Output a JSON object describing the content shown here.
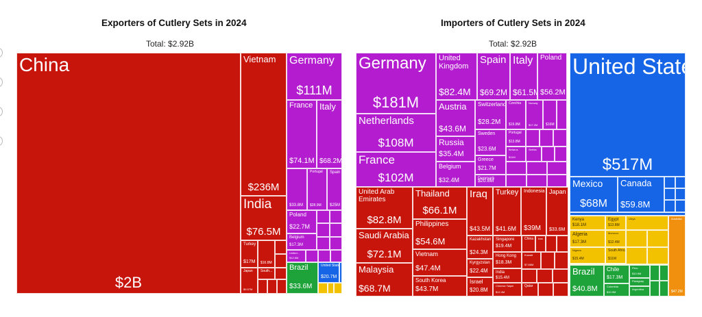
{
  "chart_data": [
    {
      "type": "treemap",
      "title": "Exporters of Cutlery Sets in 2024",
      "subtitle": "Total: $2.92B",
      "colors": {
        "asia": "#c8150c",
        "europe": "#b41cd0",
        "south_america": "#1ea33a",
        "north_america": "#1565e6",
        "africa": "#f2c200"
      },
      "items": [
        {
          "name": "China",
          "label": "$2B",
          "value": 2000,
          "region": "asia"
        },
        {
          "name": "Vietnam",
          "label": "$236M",
          "value": 236,
          "region": "asia"
        },
        {
          "name": "India",
          "label": "$76.5M",
          "value": 76.5,
          "region": "asia"
        },
        {
          "name": "Turkey",
          "label": "$17M",
          "value": 17,
          "region": "asia"
        },
        {
          "name": "",
          "label": "$16.8M",
          "value": 16.8,
          "region": "asia"
        },
        {
          "name": "Japan",
          "label": "$9.57M",
          "value": 9.57,
          "region": "asia"
        },
        {
          "name": "South...",
          "label": "",
          "value": 8,
          "region": "asia"
        },
        {
          "name": "Germany",
          "label": "$111M",
          "value": 111,
          "region": "europe"
        },
        {
          "name": "France",
          "label": "$74.1M",
          "value": 74.1,
          "region": "europe"
        },
        {
          "name": "Italy",
          "label": "$68.2M",
          "value": 68.2,
          "region": "europe"
        },
        {
          "name": "",
          "label": "$33.8M",
          "value": 33.8,
          "region": "europe"
        },
        {
          "name": "Portugal",
          "label": "$28.9M",
          "value": 28.9,
          "region": "europe"
        },
        {
          "name": "Spain",
          "label": "$25M",
          "value": 25,
          "region": "europe"
        },
        {
          "name": "Poland",
          "label": "$22.7M",
          "value": 22.7,
          "region": "europe"
        },
        {
          "name": "Belgium",
          "label": "$17.3M",
          "value": 17.3,
          "region": "europe"
        },
        {
          "name": "United...",
          "label": "$12.6M",
          "value": 12.6,
          "region": "europe"
        },
        {
          "name": "Brazil",
          "label": "$33.6M",
          "value": 33.6,
          "region": "south_america"
        },
        {
          "name": "United States",
          "label": "$20.7M",
          "value": 20.7,
          "region": "north_america"
        }
      ]
    },
    {
      "type": "treemap",
      "title": "Importers of Cutlery Sets in 2024",
      "subtitle": "Total: $2.92B",
      "colors": {
        "asia": "#c8150c",
        "europe": "#b41cd0",
        "south_america": "#1ea33a",
        "north_america": "#1565e6",
        "africa": "#f2c200",
        "oceania": "#f0900e"
      },
      "items": [
        {
          "name": "Germany",
          "label": "$181M",
          "value": 181,
          "region": "europe"
        },
        {
          "name": "United Kingdom",
          "label": "$82.4M",
          "value": 82.4,
          "region": "europe"
        },
        {
          "name": "Spain",
          "label": "$69.2M",
          "value": 69.2,
          "region": "europe"
        },
        {
          "name": "Italy",
          "label": "$61.5M",
          "value": 61.5,
          "region": "europe"
        },
        {
          "name": "Poland",
          "label": "$56.2M",
          "value": 56.2,
          "region": "europe"
        },
        {
          "name": "Netherlands",
          "label": "$108M",
          "value": 108,
          "region": "europe"
        },
        {
          "name": "Austria",
          "label": "$43.6M",
          "value": 43.6,
          "region": "europe"
        },
        {
          "name": "Switzerland",
          "label": "$28.2M",
          "value": 28.2,
          "region": "europe"
        },
        {
          "name": "Czechia",
          "label": "$19.8M",
          "value": 19.8,
          "region": "europe"
        },
        {
          "name": "Norway",
          "label": "$17.2M",
          "value": 17.2,
          "region": "europe"
        },
        {
          "name": "",
          "label": "$16M",
          "value": 16,
          "region": "europe"
        },
        {
          "name": "Sweden",
          "label": "$23.6M",
          "value": 23.6,
          "region": "europe"
        },
        {
          "name": "Portugal",
          "label": "$13.8M",
          "value": 13.8,
          "region": "europe"
        },
        {
          "name": "Belarus",
          "label": "$11M",
          "value": 11,
          "region": "europe"
        },
        {
          "name": "Serbia",
          "label": "",
          "value": 10,
          "region": "europe"
        },
        {
          "name": "Russia",
          "label": "$35.4M",
          "value": 35.4,
          "region": "europe"
        },
        {
          "name": "Greece",
          "label": "$21.7M",
          "value": 21.7,
          "region": "europe"
        },
        {
          "name": "France",
          "label": "$102M",
          "value": 102,
          "region": "europe"
        },
        {
          "name": "Belgium",
          "label": "$32.4M",
          "value": 32.4,
          "region": "europe"
        },
        {
          "name": "Denmark",
          "label": "$20.8M",
          "value": 20.8,
          "region": "europe"
        },
        {
          "name": "United Arab Emirates",
          "label": "$82.8M",
          "value": 82.8,
          "region": "asia"
        },
        {
          "name": "Saudi Arabia",
          "label": "$72.1M",
          "value": 72.1,
          "region": "asia"
        },
        {
          "name": "Malaysia",
          "label": "$68.7M",
          "value": 68.7,
          "region": "asia"
        },
        {
          "name": "Thailand",
          "label": "$66.1M",
          "value": 66.1,
          "region": "asia"
        },
        {
          "name": "Philippines",
          "label": "$54.6M",
          "value": 54.6,
          "region": "asia"
        },
        {
          "name": "Vietnam",
          "label": "$47.4M",
          "value": 47.4,
          "region": "asia"
        },
        {
          "name": "South Korea",
          "label": "$43.7M",
          "value": 43.7,
          "region": "asia"
        },
        {
          "name": "Iraq",
          "label": "$43.5M",
          "value": 43.5,
          "region": "asia"
        },
        {
          "name": "Turkey",
          "label": "$41.6M",
          "value": 41.6,
          "region": "asia"
        },
        {
          "name": "Indonesia",
          "label": "$39M",
          "value": 39,
          "region": "asia"
        },
        {
          "name": "Japan",
          "label": "$33.6M",
          "value": 33.6,
          "region": "asia"
        },
        {
          "name": "Kazakhstan",
          "label": "$24.3M",
          "value": 24.3,
          "region": "asia"
        },
        {
          "name": "Singapore",
          "label": "$19.4M",
          "value": 19.4,
          "region": "asia"
        },
        {
          "name": "China",
          "label": "",
          "value": 15,
          "region": "asia"
        },
        {
          "name": "Iran",
          "label": "",
          "value": 14,
          "region": "asia"
        },
        {
          "name": "Kyrgyzstan",
          "label": "$22.4M",
          "value": 22.4,
          "region": "asia"
        },
        {
          "name": "Hong Kong",
          "label": "$18.3M",
          "value": 18.3,
          "region": "asia"
        },
        {
          "name": "Kuwait",
          "label": "$7.66M",
          "value": 7.66,
          "region": "asia"
        },
        {
          "name": "India",
          "label": "$15.4M",
          "value": 15.4,
          "region": "asia"
        },
        {
          "name": "Israel",
          "label": "$20.8M",
          "value": 20.8,
          "region": "asia"
        },
        {
          "name": "Chinese Taipei",
          "label": "$12.4M",
          "value": 12.4,
          "region": "asia"
        },
        {
          "name": "Qatar",
          "label": "",
          "value": 9,
          "region": "asia"
        },
        {
          "name": "United States",
          "label": "$517M",
          "value": 517,
          "region": "north_america"
        },
        {
          "name": "Mexico",
          "label": "$68M",
          "value": 68,
          "region": "north_america"
        },
        {
          "name": "Canada",
          "label": "$59.8M",
          "value": 59.8,
          "region": "north_america"
        },
        {
          "name": "Kenya",
          "label": "$18.1M",
          "value": 18.1,
          "region": "africa"
        },
        {
          "name": "Egypt",
          "label": "$13.8M",
          "value": 13.8,
          "region": "africa"
        },
        {
          "name": "Libya",
          "label": "",
          "value": 9,
          "region": "africa"
        },
        {
          "name": "Algeria",
          "label": "$17.3M",
          "value": 17.3,
          "region": "africa"
        },
        {
          "name": "Morocco",
          "label": "$12.4M",
          "value": 12.4,
          "region": "africa"
        },
        {
          "name": "Nigeria",
          "label": "$15.4M",
          "value": 15.4,
          "region": "africa"
        },
        {
          "name": "South Africa",
          "label": "$11M",
          "value": 11,
          "region": "africa"
        },
        {
          "name": "Australia",
          "label": "$47.2M",
          "value": 47.2,
          "region": "oceania"
        },
        {
          "name": "Brazil",
          "label": "$40.8M",
          "value": 40.8,
          "region": "south_america"
        },
        {
          "name": "Chile",
          "label": "$17.3M",
          "value": 17.3,
          "region": "south_america"
        },
        {
          "name": "Peru",
          "label": "$10.9M",
          "value": 10.9,
          "region": "south_america"
        },
        {
          "name": "Paraguay",
          "label": "",
          "value": 9,
          "region": "south_america"
        },
        {
          "name": "Colombia",
          "label": "$10.9M",
          "value": 10.9,
          "region": "south_america"
        },
        {
          "name": "Argentina",
          "label": "",
          "value": 8,
          "region": "south_america"
        }
      ]
    }
  ]
}
